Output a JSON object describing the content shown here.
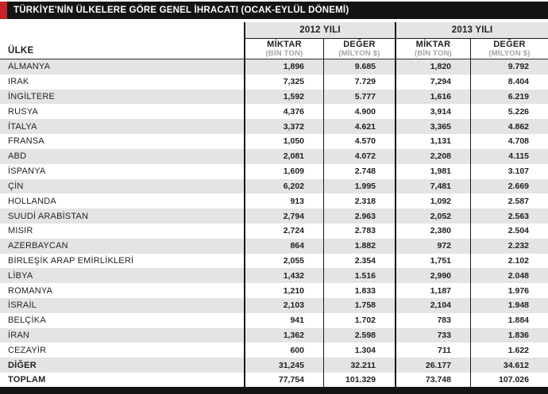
{
  "title": "TÜRKİYE'NİN ÜLKELERE GÖRE GENEL İHRACATI (OCAK-EYLÜL DÖNEMİ)",
  "table": {
    "country_header": "ÜLKE",
    "year_groups": [
      "2012 YILI",
      "2013 YILI"
    ],
    "columns": [
      {
        "main": "MİKTAR",
        "sub": "(BİN TON)"
      },
      {
        "main": "DEĞER",
        "sub": "(MİLYON $)"
      },
      {
        "main": "MİKTAR",
        "sub": "(BİN TON)"
      },
      {
        "main": "DEĞER",
        "sub": "(MİLYON $)"
      }
    ],
    "summary_rows": [
      "DİĞER",
      "TOPLAM"
    ]
  },
  "colors": {
    "accent_red": "#c92128",
    "bar_black": "#141414",
    "row_stripe_gray": "#e4e4e4",
    "subheader_gray": "#a3a3a3",
    "line_black": "#1a1a1a"
  },
  "chart_data": {
    "type": "table",
    "title": "TÜRKİYE'NİN ÜLKELERE GÖRE GENEL İHRACATI (OCAK-EYLÜL DÖNEMİ)",
    "column_headers": [
      "ÜLKE",
      "2012 YILI MİKTAR (BİN TON)",
      "2012 YILI DEĞER (MİLYON $)",
      "2013 YILI MİKTAR (BİN TON)",
      "2013 YILI DEĞER (MİLYON $)"
    ],
    "rows": [
      [
        "ALMANYA",
        "1,896",
        "9.685",
        "1,820",
        "9.792"
      ],
      [
        "IRAK",
        "7,325",
        "7.729",
        "7,294",
        "8.404"
      ],
      [
        "İNGİLTERE",
        "1,592",
        "5.777",
        "1,616",
        "6.219"
      ],
      [
        "RUSYA",
        "4,376",
        "4.900",
        "3,914",
        "5.226"
      ],
      [
        "İTALYA",
        "3,372",
        "4.621",
        "3,365",
        "4.862"
      ],
      [
        "FRANSA",
        "1,050",
        "4.570",
        "1,131",
        "4.708"
      ],
      [
        "ABD",
        "2,081",
        "4.072",
        "2,208",
        "4.115"
      ],
      [
        "İSPANYA",
        "1,609",
        "2.748",
        "1,981",
        "3.107"
      ],
      [
        "ÇİN",
        "6,202",
        "1.995",
        "7,481",
        "2.669"
      ],
      [
        "HOLLANDA",
        "913",
        "2.318",
        "1,092",
        "2.587"
      ],
      [
        "SUUDİ ARABİSTAN",
        "2,794",
        "2.963",
        "2,052",
        "2.563"
      ],
      [
        "MISIR",
        "2,724",
        "2.783",
        "2,380",
        "2.504"
      ],
      [
        "AZERBAYCAN",
        "864",
        "1.882",
        "972",
        "2.232"
      ],
      [
        "BİRLEŞİK ARAP EMİRLİKLERİ",
        "2,055",
        "2.354",
        "1,751",
        "2.102"
      ],
      [
        "LİBYA",
        "1,432",
        "1.516",
        "2,990",
        "2.048"
      ],
      [
        "ROMANYA",
        "1,210",
        "1.833",
        "1,187",
        "1.976"
      ],
      [
        "İSRAİL",
        "2,103",
        "1.758",
        "2,104",
        "1.948"
      ],
      [
        "BELÇİKA",
        "941",
        "1.702",
        "783",
        "1.884"
      ],
      [
        "İRAN",
        "1,362",
        "2.598",
        "733",
        "1.836"
      ],
      [
        "CEZAYİR",
        "600",
        "1.304",
        "711",
        "1.622"
      ],
      [
        "DİĞER",
        "31,245",
        "32.211",
        "26.177",
        "34.612"
      ],
      [
        "TOPLAM",
        "77,754",
        "101.329",
        "73.748",
        "107.026"
      ]
    ]
  }
}
